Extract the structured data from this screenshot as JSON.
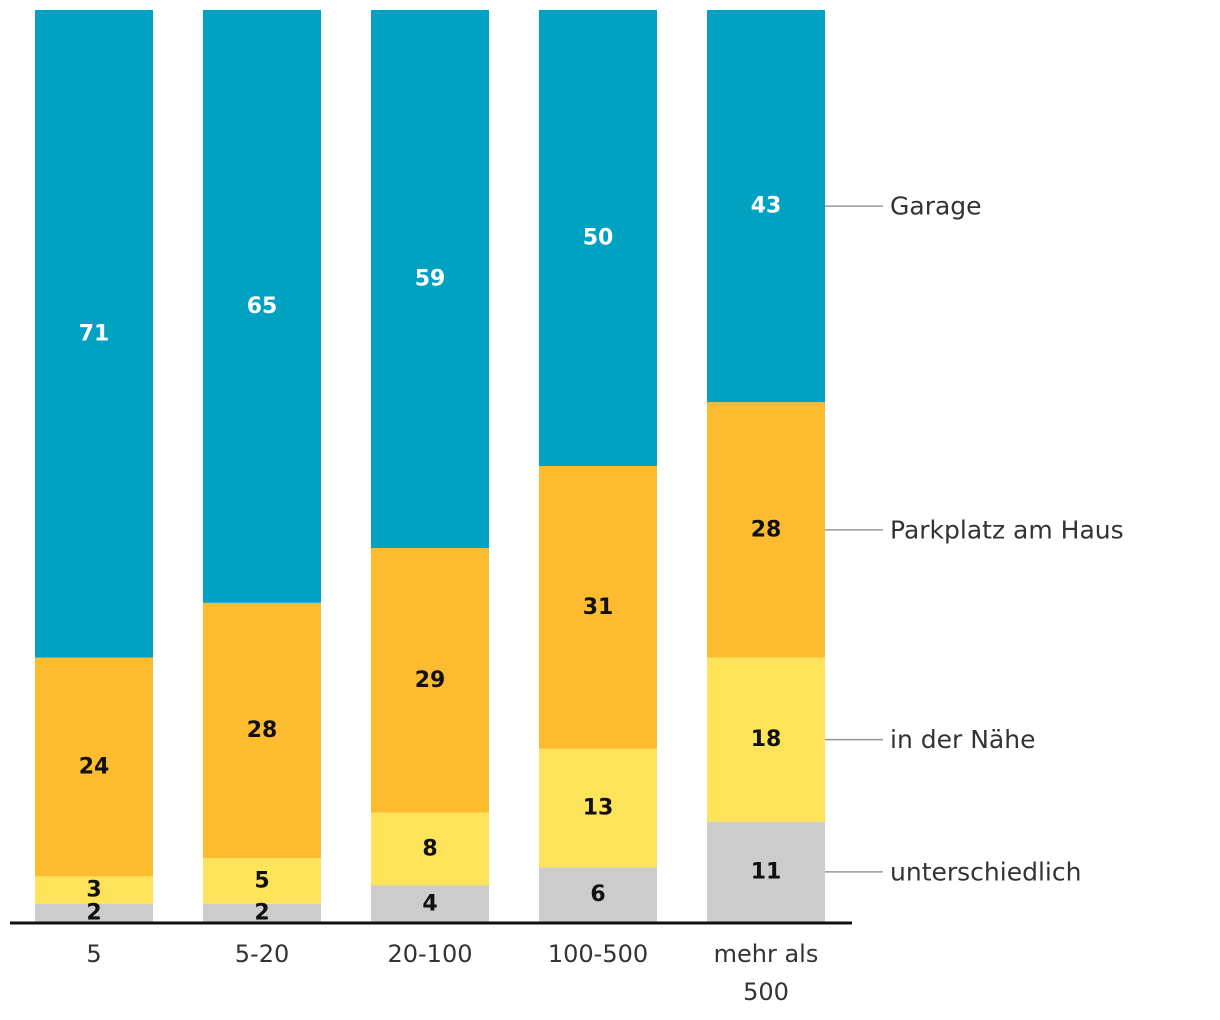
{
  "chart_data": {
    "type": "bar",
    "stacked": true,
    "categories": [
      [
        "5"
      ],
      [
        "5-20"
      ],
      [
        "20-100"
      ],
      [
        "100-500"
      ],
      [
        "mehr als",
        "500"
      ]
    ],
    "series": [
      {
        "name": "unterschiedlich",
        "color": "#cccccc",
        "label_color": "#111111",
        "values": [
          2,
          2,
          4,
          6,
          11
        ]
      },
      {
        "name": "in der Nähe",
        "color": "#fde35a",
        "label_color": "#111111",
        "values": [
          3,
          5,
          8,
          13,
          18
        ]
      },
      {
        "name": "Parkplatz am Haus",
        "color": "#fdbc2f",
        "label_color": "#111111",
        "values": [
          24,
          28,
          29,
          31,
          28
        ]
      },
      {
        "name": "Garage",
        "color": "#00a1c1",
        "label_color": "#ffffff",
        "values": [
          71,
          65,
          59,
          50,
          43
        ]
      }
    ],
    "ylim": [
      0,
      100
    ],
    "legend_position": "right",
    "title": "",
    "xlabel": "",
    "ylabel": ""
  }
}
